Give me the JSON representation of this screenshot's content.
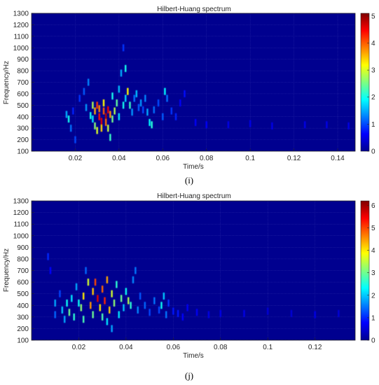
{
  "charts": [
    {
      "title": "Hilbert-Huang spectrum",
      "xlabel": "Time/s",
      "ylabel": "Frequency/Hz",
      "caption": "(i)",
      "x_ticks": [
        "0.02",
        "0.04",
        "0.06",
        "0.08",
        "0.1",
        "0.12",
        "0.14"
      ],
      "y_ticks": [
        "100",
        "200",
        "300",
        "400",
        "500",
        "600",
        "700",
        "800",
        "900",
        "1000",
        "1100",
        "1200",
        "1300"
      ],
      "colorbar_ticks": [
        "0",
        "1",
        "2",
        "3",
        "4",
        "5"
      ]
    },
    {
      "title": "Hilbert-Huang spectrum",
      "xlabel": "Time/s",
      "ylabel": "Frequency/Hz",
      "caption": "(j)",
      "x_ticks": [
        "0.02",
        "0.04",
        "0.06",
        "0.08",
        "0.1",
        "0.12"
      ],
      "y_ticks": [
        "100",
        "200",
        "300",
        "400",
        "500",
        "600",
        "700",
        "800",
        "900",
        "1000",
        "1100",
        "1200",
        "1300"
      ],
      "colorbar_ticks": [
        "0",
        "1",
        "2",
        "3",
        "4",
        "5",
        "6"
      ]
    }
  ],
  "chart_data": [
    {
      "type": "heatmap",
      "title": "Hilbert-Huang spectrum",
      "xlabel": "Time/s",
      "ylabel": "Frequency/Hz",
      "xlim": [
        0.0,
        0.148
      ],
      "ylim": [
        100,
        1300
      ],
      "clim": [
        0,
        5.1
      ],
      "colormap": "jet",
      "background": "#00008f",
      "grid": true,
      "x_ticks": [
        0.02,
        0.04,
        0.06,
        0.08,
        0.1,
        0.12,
        0.14
      ],
      "y_ticks": [
        100,
        200,
        300,
        400,
        500,
        600,
        700,
        800,
        900,
        1000,
        1100,
        1200,
        1300
      ],
      "colorbar_ticks": [
        0,
        1,
        2,
        3,
        4,
        5
      ],
      "points": [
        [
          0.016,
          420,
          1.5
        ],
        [
          0.017,
          380,
          2.0
        ],
        [
          0.018,
          300,
          1.2
        ],
        [
          0.019,
          450,
          0.8
        ],
        [
          0.02,
          200,
          1.0
        ],
        [
          0.022,
          560,
          0.9
        ],
        [
          0.024,
          620,
          1.1
        ],
        [
          0.025,
          480,
          1.4
        ],
        [
          0.026,
          700,
          1.3
        ],
        [
          0.027,
          410,
          2.0
        ],
        [
          0.028,
          500,
          2.8
        ],
        [
          0.028,
          380,
          1.8
        ],
        [
          0.029,
          450,
          3.6
        ],
        [
          0.029,
          320,
          2.6
        ],
        [
          0.03,
          500,
          4.2
        ],
        [
          0.03,
          280,
          3.0
        ],
        [
          0.031,
          400,
          4.4
        ],
        [
          0.031,
          470,
          3.8
        ],
        [
          0.032,
          360,
          4.6
        ],
        [
          0.032,
          300,
          3.4
        ],
        [
          0.033,
          450,
          4.0
        ],
        [
          0.033,
          520,
          3.2
        ],
        [
          0.034,
          400,
          4.8
        ],
        [
          0.034,
          350,
          3.9
        ],
        [
          0.035,
          460,
          4.5
        ],
        [
          0.035,
          300,
          2.9
        ],
        [
          0.036,
          420,
          3.7
        ],
        [
          0.036,
          220,
          2.2
        ],
        [
          0.037,
          380,
          2.5
        ],
        [
          0.037,
          580,
          2.0
        ],
        [
          0.038,
          450,
          2.8
        ],
        [
          0.039,
          520,
          2.4
        ],
        [
          0.04,
          400,
          1.8
        ],
        [
          0.04,
          640,
          1.6
        ],
        [
          0.041,
          780,
          1.5
        ],
        [
          0.042,
          1000,
          0.9
        ],
        [
          0.042,
          500,
          2.0
        ],
        [
          0.043,
          820,
          2.0
        ],
        [
          0.043,
          560,
          1.7
        ],
        [
          0.044,
          620,
          3.2
        ],
        [
          0.045,
          500,
          2.2
        ],
        [
          0.046,
          440,
          1.4
        ],
        [
          0.047,
          560,
          1.2
        ],
        [
          0.048,
          600,
          1.6
        ],
        [
          0.049,
          480,
          1.1
        ],
        [
          0.05,
          520,
          1.4
        ],
        [
          0.051,
          460,
          1.0
        ],
        [
          0.052,
          560,
          1.3
        ],
        [
          0.053,
          440,
          1.5
        ],
        [
          0.054,
          350,
          1.9
        ],
        [
          0.055,
          330,
          2.1
        ],
        [
          0.056,
          460,
          1.2
        ],
        [
          0.058,
          520,
          1.0
        ],
        [
          0.06,
          400,
          1.1
        ],
        [
          0.061,
          620,
          1.9
        ],
        [
          0.062,
          560,
          1.2
        ],
        [
          0.064,
          450,
          0.9
        ],
        [
          0.066,
          400,
          0.8
        ],
        [
          0.068,
          520,
          0.6
        ],
        [
          0.07,
          600,
          0.7
        ],
        [
          0.075,
          350,
          0.6
        ],
        [
          0.08,
          330,
          0.6
        ],
        [
          0.09,
          330,
          0.5
        ],
        [
          0.1,
          340,
          0.5
        ],
        [
          0.11,
          320,
          0.5
        ],
        [
          0.125,
          330,
          0.5
        ],
        [
          0.135,
          330,
          0.5
        ],
        [
          0.145,
          320,
          0.5
        ]
      ]
    },
    {
      "type": "heatmap",
      "title": "Hilbert-Huang spectrum",
      "xlabel": "Time/s",
      "ylabel": "Frequency/Hz",
      "xlim": [
        0.0,
        0.137
      ],
      "ylim": [
        100,
        1300
      ],
      "clim": [
        0,
        6.2
      ],
      "colormap": "jet",
      "background": "#00008f",
      "grid": true,
      "x_ticks": [
        0.02,
        0.04,
        0.06,
        0.08,
        0.1,
        0.12
      ],
      "y_ticks": [
        100,
        200,
        300,
        400,
        500,
        600,
        700,
        800,
        900,
        1000,
        1100,
        1200,
        1300
      ],
      "colorbar_ticks": [
        0,
        1,
        2,
        3,
        4,
        5,
        6
      ],
      "points": [
        [
          0.007,
          820,
          1.0
        ],
        [
          0.008,
          700,
          0.8
        ],
        [
          0.01,
          420,
          1.8
        ],
        [
          0.01,
          320,
          1.4
        ],
        [
          0.012,
          500,
          1.2
        ],
        [
          0.013,
          360,
          2.0
        ],
        [
          0.014,
          280,
          1.8
        ],
        [
          0.015,
          420,
          2.4
        ],
        [
          0.016,
          340,
          3.0
        ],
        [
          0.017,
          460,
          2.2
        ],
        [
          0.018,
          300,
          2.6
        ],
        [
          0.019,
          560,
          1.8
        ],
        [
          0.02,
          420,
          2.4
        ],
        [
          0.021,
          380,
          3.2
        ],
        [
          0.022,
          480,
          4.0
        ],
        [
          0.022,
          280,
          2.8
        ],
        [
          0.023,
          700,
          1.4
        ],
        [
          0.024,
          600,
          3.6
        ],
        [
          0.025,
          400,
          4.5
        ],
        [
          0.026,
          520,
          4.2
        ],
        [
          0.026,
          320,
          3.0
        ],
        [
          0.027,
          600,
          5.0
        ],
        [
          0.028,
          460,
          5.6
        ],
        [
          0.029,
          380,
          4.0
        ],
        [
          0.03,
          540,
          4.8
        ],
        [
          0.03,
          300,
          2.8
        ],
        [
          0.031,
          440,
          5.2
        ],
        [
          0.032,
          620,
          4.4
        ],
        [
          0.032,
          260,
          2.2
        ],
        [
          0.033,
          360,
          4.2
        ],
        [
          0.034,
          500,
          3.6
        ],
        [
          0.034,
          200,
          1.8
        ],
        [
          0.035,
          420,
          3.2
        ],
        [
          0.036,
          580,
          2.6
        ],
        [
          0.037,
          320,
          2.2
        ],
        [
          0.038,
          460,
          3.0
        ],
        [
          0.039,
          380,
          2.0
        ],
        [
          0.04,
          520,
          2.4
        ],
        [
          0.041,
          440,
          3.4
        ],
        [
          0.042,
          400,
          2.6
        ],
        [
          0.043,
          620,
          1.6
        ],
        [
          0.044,
          700,
          1.5
        ],
        [
          0.045,
          360,
          1.6
        ],
        [
          0.046,
          480,
          1.3
        ],
        [
          0.048,
          400,
          1.4
        ],
        [
          0.05,
          340,
          1.2
        ],
        [
          0.052,
          440,
          1.5
        ],
        [
          0.054,
          360,
          1.2
        ],
        [
          0.055,
          400,
          2.4
        ],
        [
          0.056,
          480,
          2.0
        ],
        [
          0.057,
          320,
          1.5
        ],
        [
          0.058,
          420,
          1.1
        ],
        [
          0.06,
          350,
          0.9
        ],
        [
          0.062,
          330,
          0.9
        ],
        [
          0.064,
          300,
          0.8
        ],
        [
          0.066,
          380,
          0.7
        ],
        [
          0.07,
          340,
          0.7
        ],
        [
          0.075,
          320,
          0.6
        ],
        [
          0.08,
          330,
          0.6
        ],
        [
          0.09,
          330,
          0.6
        ],
        [
          0.1,
          350,
          0.5
        ],
        [
          0.11,
          330,
          0.5
        ],
        [
          0.12,
          320,
          0.6
        ],
        [
          0.13,
          330,
          0.5
        ]
      ]
    }
  ]
}
